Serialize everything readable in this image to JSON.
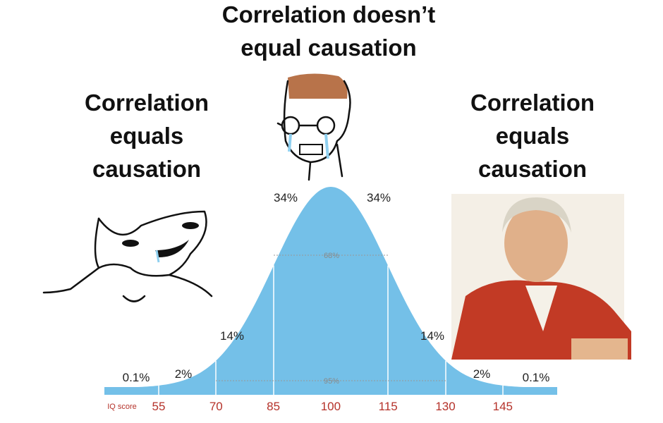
{
  "captions": {
    "center": [
      "Correlation doesn’t",
      "equal causation"
    ],
    "left": [
      "Correlation",
      "equals",
      "causation"
    ],
    "right": [
      "Correlation",
      "equals",
      "causation"
    ]
  },
  "curve": {
    "segments": [
      "0.1%",
      "2%",
      "14%",
      "34%",
      "34%",
      "14%",
      "2%",
      "0.1%"
    ],
    "inner": [
      "68%",
      "95%"
    ],
    "axis_label": "IQ score",
    "ticks": [
      "55",
      "70",
      "85",
      "100",
      "115",
      "130",
      "145"
    ]
  }
}
